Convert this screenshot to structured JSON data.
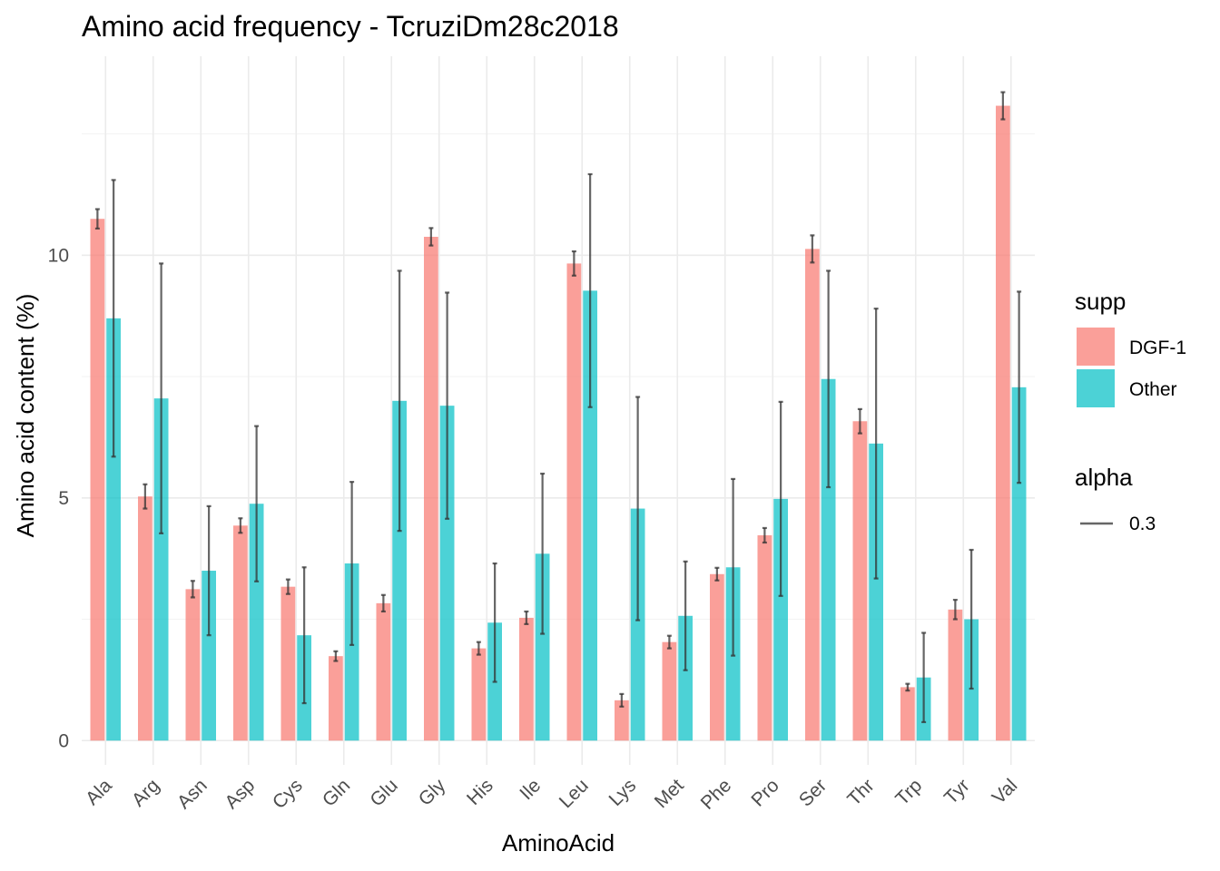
{
  "chart_data": {
    "type": "bar",
    "title": "Amino acid frequency - TcruziDm28c2018",
    "xlabel": "AminoAcid",
    "ylabel": "Amino acid content (%)",
    "ylim": [
      -0.5,
      14.1
    ],
    "yticks": [
      0,
      5,
      10
    ],
    "grid": true,
    "legend_position": "right",
    "categories": [
      "Ala",
      "Arg",
      "Asn",
      "Asp",
      "Cys",
      "Gln",
      "Glu",
      "Gly",
      "His",
      "Ile",
      "Leu",
      "Lys",
      "Met",
      "Phe",
      "Pro",
      "Ser",
      "Thr",
      "Trp",
      "Tyr",
      "Val"
    ],
    "series": [
      {
        "name": "DGF-1",
        "color": "#f8766d",
        "values": [
          10.75,
          5.03,
          3.12,
          4.43,
          3.17,
          1.74,
          2.83,
          10.38,
          1.9,
          2.53,
          9.83,
          0.83,
          2.03,
          3.43,
          4.23,
          10.13,
          6.58,
          1.1,
          2.7,
          13.08
        ],
        "error": [
          0.2,
          0.25,
          0.17,
          0.15,
          0.15,
          0.1,
          0.17,
          0.18,
          0.13,
          0.13,
          0.25,
          0.13,
          0.13,
          0.13,
          0.15,
          0.28,
          0.25,
          0.07,
          0.2,
          0.28
        ]
      },
      {
        "name": "Other",
        "color": "#00bfc4",
        "values": [
          8.7,
          7.05,
          3.5,
          4.88,
          2.17,
          3.65,
          7.0,
          6.9,
          2.43,
          3.85,
          9.27,
          4.78,
          2.57,
          3.57,
          4.98,
          7.45,
          6.12,
          1.3,
          2.5,
          7.28
        ],
        "error": [
          2.85,
          2.78,
          1.33,
          1.6,
          1.4,
          1.68,
          2.68,
          2.33,
          1.22,
          1.65,
          2.4,
          2.3,
          1.12,
          1.82,
          2.0,
          2.23,
          2.78,
          0.92,
          1.43,
          1.97
        ]
      }
    ],
    "legend": {
      "fill_title": "supp",
      "fill_entries": [
        "DGF-1",
        "Other"
      ],
      "alpha_title": "alpha",
      "alpha_entries": [
        "0.3"
      ]
    },
    "bar_alpha": 0.7,
    "errorbar_color": "#333333"
  }
}
